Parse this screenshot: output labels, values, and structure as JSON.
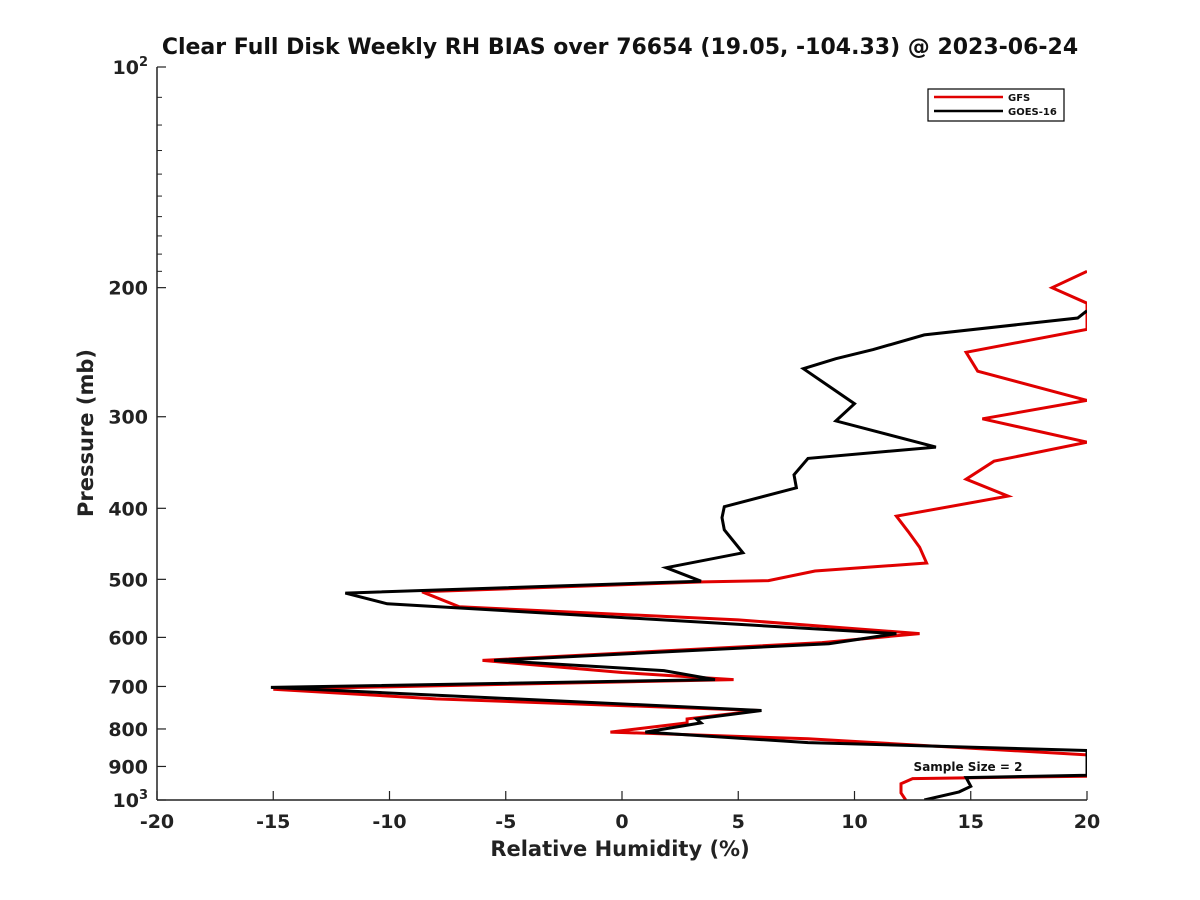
{
  "chart_data": {
    "type": "line",
    "title": "Clear Full Disk Weekly RH BIAS over 76654 (19.05, -104.33) @ 2023-06-24",
    "xlabel": "Relative Humidity (%)",
    "ylabel": "Pressure (mb)",
    "xlim": [
      -20,
      20
    ],
    "ylim": [
      100,
      1000
    ],
    "yscale": "log",
    "y_reversed": true,
    "x_ticks": [
      "-20",
      "-15",
      "-10",
      "-5",
      "0",
      "5",
      "10",
      "15",
      "20"
    ],
    "y_ticks": [
      {
        "value": 100,
        "base": "10",
        "exp": "2"
      },
      {
        "value": 200,
        "label": "200"
      },
      {
        "value": 300,
        "label": "300"
      },
      {
        "value": 400,
        "label": "400"
      },
      {
        "value": 500,
        "label": "500"
      },
      {
        "value": 600,
        "label": "600"
      },
      {
        "value": 700,
        "label": "700"
      },
      {
        "value": 800,
        "label": "800"
      },
      {
        "value": 900,
        "label": "900"
      },
      {
        "value": 1000,
        "base": "10",
        "exp": "3"
      }
    ],
    "legend_position": "top-right",
    "annotation": "Sample Size = 2",
    "series": [
      {
        "name": "GFS",
        "color": "#e00000",
        "points": [
          {
            "x": 20,
            "p": 190
          },
          {
            "x": 18.5,
            "p": 200
          },
          {
            "x": 20,
            "p": 210
          },
          {
            "x": 20,
            "p": 228
          },
          {
            "x": 14.8,
            "p": 245
          },
          {
            "x": 15.3,
            "p": 260
          },
          {
            "x": 20,
            "p": 285
          },
          {
            "x": 15.5,
            "p": 302
          },
          {
            "x": 20,
            "p": 325
          },
          {
            "x": 16.0,
            "p": 345
          },
          {
            "x": 14.8,
            "p": 365
          },
          {
            "x": 16.6,
            "p": 385
          },
          {
            "x": 11.8,
            "p": 410
          },
          {
            "x": 12.3,
            "p": 430
          },
          {
            "x": 12.8,
            "p": 452
          },
          {
            "x": 13.1,
            "p": 475
          },
          {
            "x": 8.3,
            "p": 487
          },
          {
            "x": 6.3,
            "p": 502
          },
          {
            "x": 3.5,
            "p": 504
          },
          {
            "x": -8.6,
            "p": 520
          },
          {
            "x": -7.0,
            "p": 545
          },
          {
            "x": 5.0,
            "p": 568
          },
          {
            "x": 12.8,
            "p": 593
          },
          {
            "x": 8.6,
            "p": 610
          },
          {
            "x": -6.0,
            "p": 645
          },
          {
            "x": 0,
            "p": 670
          },
          {
            "x": 4.8,
            "p": 685
          },
          {
            "x": -15.0,
            "p": 706
          },
          {
            "x": -8.0,
            "p": 728
          },
          {
            "x": 5.9,
            "p": 755
          },
          {
            "x": 2.8,
            "p": 775
          },
          {
            "x": 2.8,
            "p": 785
          },
          {
            "x": -0.5,
            "p": 808
          },
          {
            "x": 8.0,
            "p": 825
          },
          {
            "x": 20,
            "p": 868
          },
          {
            "x": 20,
            "p": 928
          },
          {
            "x": 12.5,
            "p": 935
          },
          {
            "x": 12.0,
            "p": 950
          },
          {
            "x": 12.0,
            "p": 978
          },
          {
            "x": 12.2,
            "p": 1000
          }
        ]
      },
      {
        "name": "GOES-16",
        "color": "#000000",
        "points": [
          {
            "x": 20,
            "p": 215
          },
          {
            "x": 19.6,
            "p": 220
          },
          {
            "x": 13.0,
            "p": 232
          },
          {
            "x": 10.8,
            "p": 243
          },
          {
            "x": 9.2,
            "p": 250
          },
          {
            "x": 7.8,
            "p": 258
          },
          {
            "x": 10.0,
            "p": 288
          },
          {
            "x": 9.2,
            "p": 304
          },
          {
            "x": 13.5,
            "p": 330
          },
          {
            "x": 8.0,
            "p": 342
          },
          {
            "x": 7.4,
            "p": 360
          },
          {
            "x": 7.5,
            "p": 375
          },
          {
            "x": 4.4,
            "p": 398
          },
          {
            "x": 4.3,
            "p": 412
          },
          {
            "x": 4.4,
            "p": 428
          },
          {
            "x": 5.2,
            "p": 460
          },
          {
            "x": 1.9,
            "p": 482
          },
          {
            "x": 3.4,
            "p": 503
          },
          {
            "x": -11.9,
            "p": 522
          },
          {
            "x": -10.1,
            "p": 540
          },
          {
            "x": 11.8,
            "p": 593
          },
          {
            "x": 8.9,
            "p": 612
          },
          {
            "x": -5.5,
            "p": 645
          },
          {
            "x": 1.8,
            "p": 666
          },
          {
            "x": 4.0,
            "p": 685
          },
          {
            "x": -15.1,
            "p": 702
          },
          {
            "x": 6.0,
            "p": 755
          },
          {
            "x": 3.2,
            "p": 775
          },
          {
            "x": 3.4,
            "p": 785
          },
          {
            "x": 1.0,
            "p": 808
          },
          {
            "x": 8.0,
            "p": 835
          },
          {
            "x": 20,
            "p": 856
          },
          {
            "x": 20,
            "p": 925
          },
          {
            "x": 14.8,
            "p": 932
          },
          {
            "x": 15.0,
            "p": 958
          },
          {
            "x": 14.5,
            "p": 975
          },
          {
            "x": 13.0,
            "p": 1000
          }
        ]
      }
    ]
  }
}
